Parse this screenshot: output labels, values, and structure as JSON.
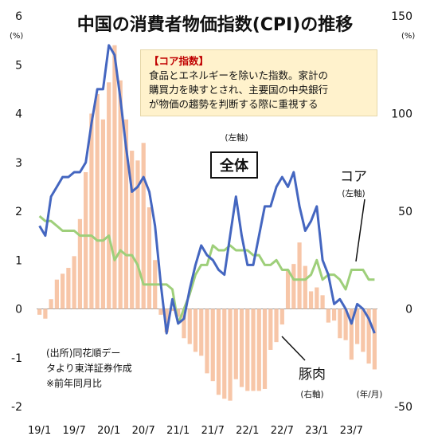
{
  "chart_data": {
    "type": "line+bar",
    "title": "中国の消費者物価指数(CPI)の推移",
    "y_left": {
      "unit": "(%)",
      "ylim": [
        -2,
        6
      ],
      "ticks": [
        -2,
        -1,
        0,
        1,
        2,
        3,
        4,
        5,
        6
      ],
      "axis_label": "(左軸)"
    },
    "y_right": {
      "unit": "(%)",
      "ylim": [
        -50,
        150
      ],
      "ticks": [
        -50,
        0,
        50,
        100,
        150
      ]
    },
    "x_ticks": [
      "19/1",
      "19/7",
      "20/1",
      "20/7",
      "21/1",
      "21/7",
      "22/1",
      "22/7",
      "23/1",
      "23/7"
    ],
    "x_axis_unit": "(年/月)",
    "months": [
      "19/1",
      "19/2",
      "19/3",
      "19/4",
      "19/5",
      "19/6",
      "19/7",
      "19/8",
      "19/9",
      "19/10",
      "19/11",
      "19/12",
      "20/1",
      "20/2",
      "20/3",
      "20/4",
      "20/5",
      "20/6",
      "20/7",
      "20/8",
      "20/9",
      "20/10",
      "20/11",
      "20/12",
      "21/1",
      "21/2",
      "21/3",
      "21/4",
      "21/5",
      "21/6",
      "21/7",
      "21/8",
      "21/9",
      "21/10",
      "21/11",
      "21/12",
      "22/1",
      "22/2",
      "22/3",
      "22/4",
      "22/5",
      "22/6",
      "22/7",
      "22/8",
      "22/9",
      "22/10",
      "22/11",
      "22/12",
      "23/1",
      "23/2",
      "23/3",
      "23/4",
      "23/5",
      "23/6",
      "23/7",
      "23/8",
      "23/9",
      "23/10",
      "23/11"
    ],
    "series": [
      {
        "name": "全体",
        "axis": "left",
        "style": "line",
        "color": "#4466c0",
        "values": [
          1.7,
          1.5,
          2.3,
          2.5,
          2.7,
          2.7,
          2.8,
          2.8,
          3.0,
          3.8,
          4.5,
          4.5,
          5.4,
          5.2,
          4.3,
          3.3,
          2.4,
          2.5,
          2.7,
          2.4,
          1.7,
          0.5,
          -0.5,
          0.2,
          -0.3,
          -0.2,
          0.4,
          0.9,
          1.3,
          1.1,
          1.0,
          0.8,
          0.7,
          1.5,
          2.3,
          1.5,
          0.9,
          0.9,
          1.5,
          2.1,
          2.1,
          2.5,
          2.7,
          2.5,
          2.8,
          2.1,
          1.6,
          1.8,
          2.1,
          1.0,
          0.7,
          0.1,
          0.2,
          0.0,
          -0.3,
          0.1,
          0.0,
          -0.2,
          -0.5
        ]
      },
      {
        "name": "コア",
        "axis": "left",
        "style": "line",
        "color": "#9ecf7a",
        "axis_label": "(左軸)",
        "values": [
          1.9,
          1.8,
          1.8,
          1.7,
          1.6,
          1.6,
          1.6,
          1.5,
          1.5,
          1.5,
          1.4,
          1.4,
          1.5,
          1.0,
          1.2,
          1.1,
          1.1,
          0.9,
          0.5,
          0.5,
          0.5,
          0.5,
          0.5,
          0.4,
          -0.3,
          0.0,
          0.3,
          0.7,
          0.9,
          0.9,
          1.3,
          1.2,
          1.2,
          1.3,
          1.2,
          1.2,
          1.2,
          1.1,
          1.1,
          0.9,
          0.9,
          1.0,
          0.8,
          0.8,
          0.6,
          0.6,
          0.6,
          0.7,
          1.0,
          0.6,
          0.7,
          0.7,
          0.6,
          0.4,
          0.8,
          0.8,
          0.8,
          0.6,
          0.6
        ]
      },
      {
        "name": "豚肉",
        "axis": "right",
        "style": "bar",
        "color": "#f7c6a8",
        "axis_label": "(右軸)",
        "values": [
          -3,
          -5,
          5,
          15,
          18,
          21,
          27,
          46,
          70,
          100,
          110,
          97,
          116,
          135,
          117,
          97,
          81,
          76,
          85,
          52,
          25,
          -3,
          -12,
          -1,
          -4,
          -15,
          -18,
          -22,
          -24,
          -33,
          -37,
          -44,
          -46,
          -47,
          -36,
          -40,
          -42,
          -42,
          -42,
          -41,
          -21,
          -17,
          -8,
          20,
          23,
          34,
          22,
          9,
          11,
          7,
          -7,
          -6,
          -15,
          -16,
          -26,
          -18,
          -22,
          -28,
          -31
        ]
      }
    ],
    "annotations": {
      "note_title": "【コア指数】",
      "note_lines": [
        "食品とエネルギーを除いた指数。家計の",
        "購買力を映すとされ、主要国の中央銀行",
        "が物価の趨勢を判断する際に重視する"
      ],
      "source_lines": [
        "(出所)同花順デー",
        "タより東洋証券作成",
        "※前年同月比"
      ]
    }
  }
}
